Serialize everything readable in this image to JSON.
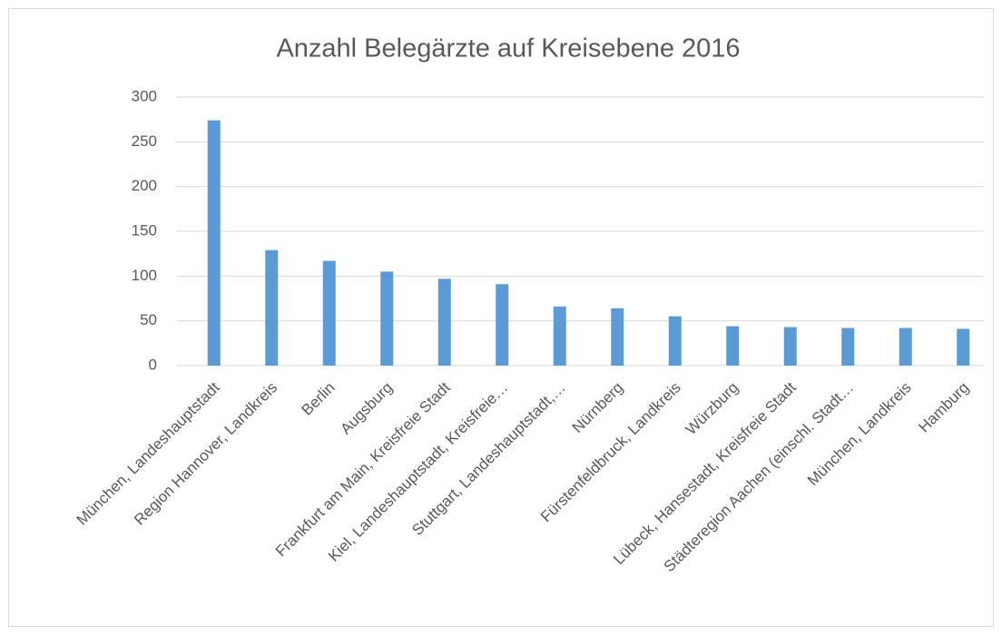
{
  "chart_data": {
    "type": "bar",
    "title": "Anzahl Belegärzte auf Kreisebene 2016",
    "categories": [
      "München, Landeshauptstadt",
      "Region Hannover, Landkreis",
      "Berlin",
      "Augsburg",
      "Frankfurt am Main, Kreisfreie Stadt",
      "Kiel, Landeshauptstadt, Kreisfreie…",
      "Stuttgart, Landeshauptstadt,…",
      "Nürnberg",
      "Fürstenfeldbruck, Landkreis",
      "Würzburg",
      "Lübeck, Hansestadt, Kreisfreie Stadt",
      "Städteregion Aachen (einschl. Stadt…",
      "München, Landkreis",
      "Hamburg"
    ],
    "values": [
      274,
      129,
      117,
      105,
      97,
      91,
      66,
      64,
      55,
      44,
      43,
      42,
      42,
      41
    ],
    "color": "#5b9bd5",
    "ylim": [
      0,
      300
    ],
    "yticks": [
      0,
      50,
      100,
      150,
      200,
      250,
      300
    ],
    "grid": true
  }
}
